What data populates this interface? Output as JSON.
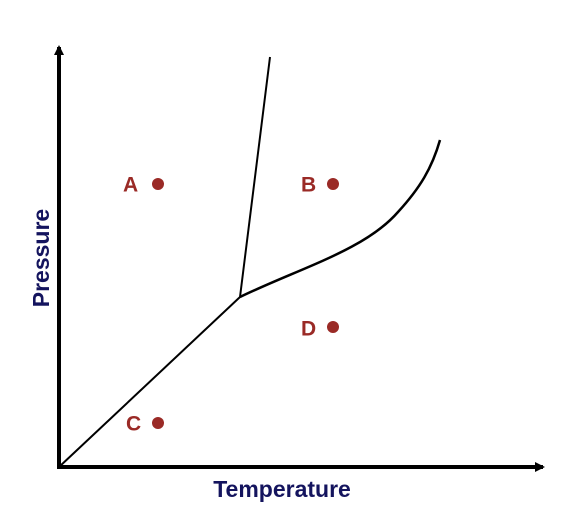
{
  "x_axis": {
    "label": "Temperature"
  },
  "y_axis": {
    "label": "Pressure"
  },
  "points": [
    {
      "label": "A"
    },
    {
      "label": "B"
    },
    {
      "label": "C"
    },
    {
      "label": "D"
    }
  ]
}
